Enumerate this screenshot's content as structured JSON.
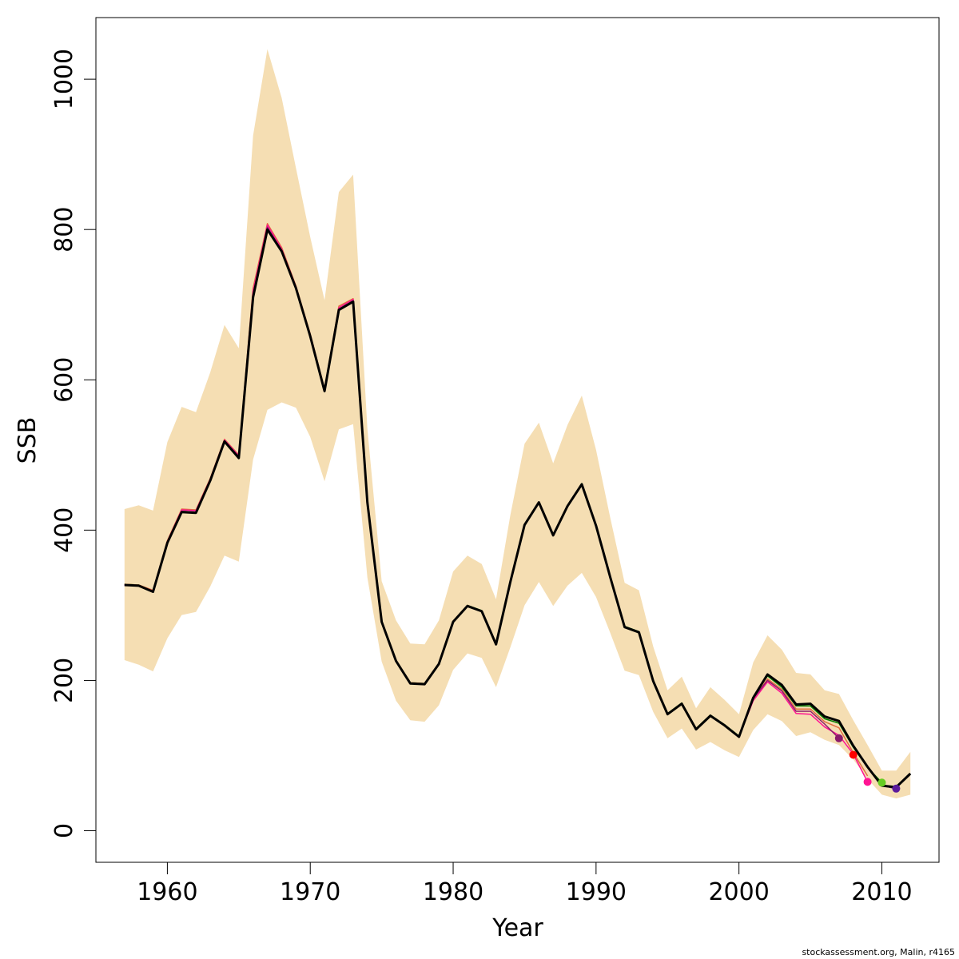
{
  "chart_data": {
    "type": "line",
    "xlabel": "Year",
    "ylabel": "SSB",
    "xlim": [
      1955,
      2014
    ],
    "ylim": [
      -42,
      1082
    ],
    "x_ticks": [
      1960,
      1970,
      1980,
      1990,
      2000,
      2010
    ],
    "y_ticks": [
      0,
      200,
      400,
      600,
      800,
      1000
    ],
    "grid": false,
    "legend": "none",
    "footer": "stockassessment.org, Malin, r4165",
    "band_color": "#F5DEB3",
    "band": {
      "years": [
        1957,
        1958,
        1959,
        1960,
        1961,
        1962,
        1963,
        1964,
        1965,
        1966,
        1967,
        1968,
        1969,
        1970,
        1971,
        1972,
        1973,
        1974,
        1975,
        1976,
        1977,
        1978,
        1979,
        1980,
        1981,
        1982,
        1983,
        1984,
        1985,
        1986,
        1987,
        1988,
        1989,
        1990,
        1991,
        1992,
        1993,
        1994,
        1995,
        1996,
        1997,
        1998,
        1999,
        2000,
        2001,
        2002,
        2003,
        2004,
        2005,
        2006,
        2007,
        2008,
        2009,
        2010,
        2011,
        2012
      ],
      "upper": [
        428,
        433,
        426,
        517,
        564,
        557,
        610,
        673,
        642,
        925,
        1040,
        975,
        882,
        790,
        706,
        850,
        873,
        535,
        332,
        280,
        249,
        248,
        280,
        345,
        366,
        355,
        308,
        420,
        515,
        543,
        489,
        540,
        579,
        507,
        416,
        330,
        320,
        245,
        187,
        205,
        163,
        191,
        174,
        155,
        224,
        260,
        241,
        210,
        208,
        187,
        182,
        147,
        114,
        80,
        80,
        105
      ],
      "lower": [
        227,
        221,
        212,
        256,
        287,
        291,
        325,
        366,
        358,
        494,
        560,
        570,
        563,
        524,
        465,
        534,
        541,
        337,
        225,
        173,
        147,
        145,
        167,
        214,
        236,
        230,
        191,
        244,
        300,
        331,
        299,
        326,
        343,
        311,
        263,
        213,
        207,
        158,
        123,
        136,
        108,
        118,
        107,
        98,
        134,
        155,
        146,
        126,
        131,
        121,
        114,
        95,
        69,
        48,
        43,
        48
      ]
    },
    "series": [
      {
        "color": "#000000",
        "width": 3,
        "x": [
          1957,
          1958,
          1959,
          1960,
          1961,
          1962,
          1963,
          1964,
          1965,
          1966,
          1967,
          1968,
          1969,
          1970,
          1971,
          1972,
          1973,
          1974,
          1975,
          1976,
          1977,
          1978,
          1979,
          1980,
          1981,
          1982,
          1983,
          1984,
          1985,
          1986,
          1987,
          1988,
          1989,
          1990,
          1991,
          1992,
          1993,
          1994,
          1995,
          1996,
          1997,
          1998,
          1999,
          2000,
          2001,
          2002,
          2003,
          2004,
          2005,
          2006,
          2007,
          2008,
          2009,
          2010,
          2011,
          2012
        ],
        "y": [
          327,
          326,
          318,
          383,
          424,
          423,
          466,
          518,
          496,
          710,
          800,
          771,
          722,
          658,
          585,
          693,
          704,
          437,
          278,
          226,
          196,
          195,
          222,
          278,
          299,
          292,
          248,
          331,
          407,
          437,
          393,
          432,
          461,
          406,
          337,
          271,
          264,
          199,
          155,
          169,
          135,
          153,
          140,
          125,
          177,
          208,
          194,
          168,
          169,
          152,
          146,
          113,
          85,
          60,
          58,
          76
        ]
      },
      {
        "color": "#008000",
        "width": 1.5,
        "x": [
          1957,
          1958,
          1959,
          1960,
          1961,
          1962,
          1963,
          1964,
          1965,
          1966,
          1967,
          1968,
          1969,
          1970,
          1971,
          1972,
          1973,
          1974,
          1975,
          1976,
          1977,
          1978,
          1979,
          1980,
          1981,
          1982,
          1983,
          1984,
          1985,
          1986,
          1987,
          1988,
          1989,
          1990,
          1991,
          1992,
          1993,
          1994,
          1995,
          1996,
          1997,
          1998,
          1999,
          2000,
          2001,
          2002,
          2003,
          2004,
          2005,
          2006,
          2007,
          2008,
          2009,
          2010
        ],
        "y": [
          328,
          327,
          319,
          384,
          425,
          424,
          467,
          519,
          497,
          712,
          802,
          773,
          723,
          659,
          586,
          694,
          706,
          438,
          279,
          227,
          197,
          196,
          223,
          279,
          300,
          293,
          249,
          332,
          408,
          437,
          394,
          433,
          462,
          407,
          338,
          272,
          265,
          200,
          156,
          170,
          136,
          154,
          141,
          126,
          178,
          206,
          191,
          166,
          166,
          149,
          143,
          111,
          84,
          64
        ]
      },
      {
        "color": "#E07040",
        "width": 1.5,
        "x": [
          1957,
          1958,
          1959,
          1960,
          1961,
          1962,
          1963,
          1964,
          1965,
          1966,
          1967,
          1968,
          1969,
          1970,
          1971,
          1972,
          1973,
          1974,
          1975,
          1976,
          1977,
          1978,
          1979,
          1980,
          1981,
          1982,
          1983,
          1984,
          1985,
          1986,
          1987,
          1988,
          1989,
          1990,
          1991,
          1992,
          1993,
          1994,
          1995,
          1996,
          1997,
          1998,
          1999,
          2000,
          2001,
          2002,
          2003,
          2004,
          2005,
          2006,
          2007,
          2008,
          2009
        ],
        "y": [
          328,
          327,
          320,
          386,
          428,
          427,
          469,
          521,
          500,
          722,
          808,
          776,
          725,
          661,
          588,
          698,
          708,
          439,
          279,
          227,
          197,
          196,
          223,
          279,
          300,
          292,
          248,
          331,
          407,
          436,
          393,
          432,
          461,
          406,
          337,
          271,
          264,
          199,
          155,
          169,
          135,
          153,
          140,
          125,
          175,
          202,
          188,
          162,
          162,
          145,
          137,
          104,
          73
        ]
      },
      {
        "color": "#FF1493",
        "width": 1.5,
        "x": [
          1957,
          1958,
          1959,
          1960,
          1961,
          1962,
          1963,
          1964,
          1965,
          1966,
          1967,
          1968,
          1969,
          1970,
          1971,
          1972,
          1973,
          1974,
          1975,
          1976,
          1977,
          1978,
          1979,
          1980,
          1981,
          1982,
          1983,
          1984,
          1985,
          1986,
          1987,
          1988,
          1989,
          1990,
          1991,
          1992,
          1993,
          1994,
          1995,
          1996,
          1997,
          1998,
          1999,
          2000,
          2001,
          2002,
          2003,
          2004,
          2005,
          2006,
          2007,
          2008,
          2009
        ],
        "y": [
          327,
          326,
          319,
          385,
          427,
          426,
          468,
          520,
          499,
          718,
          806,
          774,
          724,
          660,
          587,
          696,
          707,
          438,
          278,
          226,
          196,
          195,
          222,
          278,
          299,
          292,
          248,
          331,
          407,
          437,
          393,
          432,
          461,
          406,
          337,
          271,
          264,
          199,
          155,
          169,
          135,
          153,
          140,
          125,
          173,
          198,
          183,
          156,
          155,
          138,
          127,
          102,
          65
        ]
      },
      {
        "color": "#8B1A6B",
        "width": 1.5,
        "x": [
          1957,
          1958,
          1959,
          1960,
          1961,
          1962,
          1963,
          1964,
          1965,
          1966,
          1967,
          1968,
          1969,
          1970,
          1971,
          1972,
          1973,
          1974,
          1975,
          1976,
          1977,
          1978,
          1979,
          1980,
          1981,
          1982,
          1983,
          1984,
          1985,
          1986,
          1987,
          1988,
          1989,
          1990,
          1991,
          1992,
          1993,
          1994,
          1995,
          1996,
          1997,
          1998,
          1999,
          2000,
          2001,
          2002,
          2003,
          2004,
          2005,
          2006,
          2007
        ],
        "y": [
          327,
          326,
          318,
          384,
          425,
          424,
          467,
          519,
          498,
          714,
          803,
          772,
          723,
          659,
          586,
          694,
          705,
          438,
          278,
          226,
          196,
          195,
          222,
          278,
          299,
          292,
          248,
          331,
          407,
          437,
          393,
          432,
          461,
          406,
          337,
          271,
          264,
          199,
          155,
          169,
          135,
          153,
          140,
          125,
          176,
          200,
          186,
          159,
          159,
          142,
          123
        ]
      },
      {
        "color": "#4B0082",
        "width": 1.5,
        "x": [
          2007,
          2008,
          2009,
          2010,
          2011
        ],
        "y": [
          145,
          113,
          85,
          60,
          56
        ]
      }
    ],
    "end_points": [
      {
        "x": 2007,
        "y": 123,
        "color": "#8B1A6B"
      },
      {
        "x": 2008,
        "y": 101,
        "color": "#FF0000"
      },
      {
        "x": 2009,
        "y": 65,
        "color": "#FF1493"
      },
      {
        "x": 2010,
        "y": 64,
        "color": "#66CC22"
      },
      {
        "x": 2011,
        "y": 56,
        "color": "#5B1A9B"
      }
    ]
  }
}
